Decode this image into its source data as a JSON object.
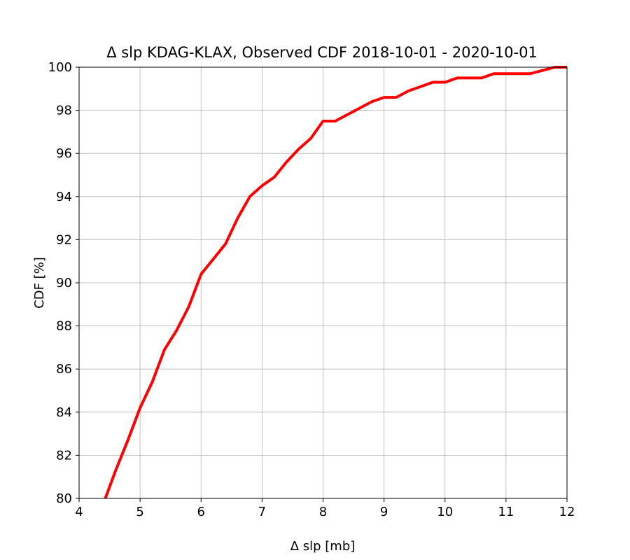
{
  "chart_data": {
    "type": "line",
    "title": "Δ slp KDAG-KLAX, Observed CDF 2018-10-01 - 2020-10-01",
    "xlabel": "Δ slp [mb]",
    "ylabel": "CDF [%]",
    "xlim": [
      4,
      12
    ],
    "ylim": [
      80,
      100
    ],
    "xticks": [
      "4",
      "5",
      "6",
      "7",
      "8",
      "9",
      "10",
      "11",
      "12"
    ],
    "yticks": [
      "80",
      "82",
      "84",
      "86",
      "88",
      "90",
      "92",
      "94",
      "96",
      "98",
      "100"
    ],
    "grid": true,
    "line_color": "#ff0000",
    "grid_color": "#b0b0b0",
    "series": [
      {
        "x": [
          4.43,
          4.6,
          4.8,
          5.0,
          5.2,
          5.4,
          5.6,
          5.8,
          6.0,
          6.2,
          6.4,
          6.6,
          6.8,
          7.0,
          7.2,
          7.4,
          7.6,
          7.8,
          8.0,
          8.2,
          8.4,
          8.6,
          8.8,
          9.0,
          9.2,
          9.4,
          9.6,
          9.8,
          10.0,
          10.2,
          10.4,
          10.6,
          10.8,
          11.0,
          11.2,
          11.4,
          11.6,
          11.8,
          12.0
        ],
        "y": [
          80.0,
          81.3,
          82.7,
          84.2,
          85.4,
          86.9,
          87.8,
          88.9,
          90.4,
          91.1,
          91.8,
          93.0,
          94.0,
          94.5,
          94.9,
          95.6,
          96.2,
          96.7,
          97.5,
          97.5,
          97.8,
          98.1,
          98.4,
          98.6,
          98.6,
          98.9,
          99.1,
          99.3,
          99.3,
          99.5,
          99.5,
          99.5,
          99.7,
          99.7,
          99.7,
          99.7,
          99.85,
          100.0,
          100.0
        ]
      }
    ]
  }
}
